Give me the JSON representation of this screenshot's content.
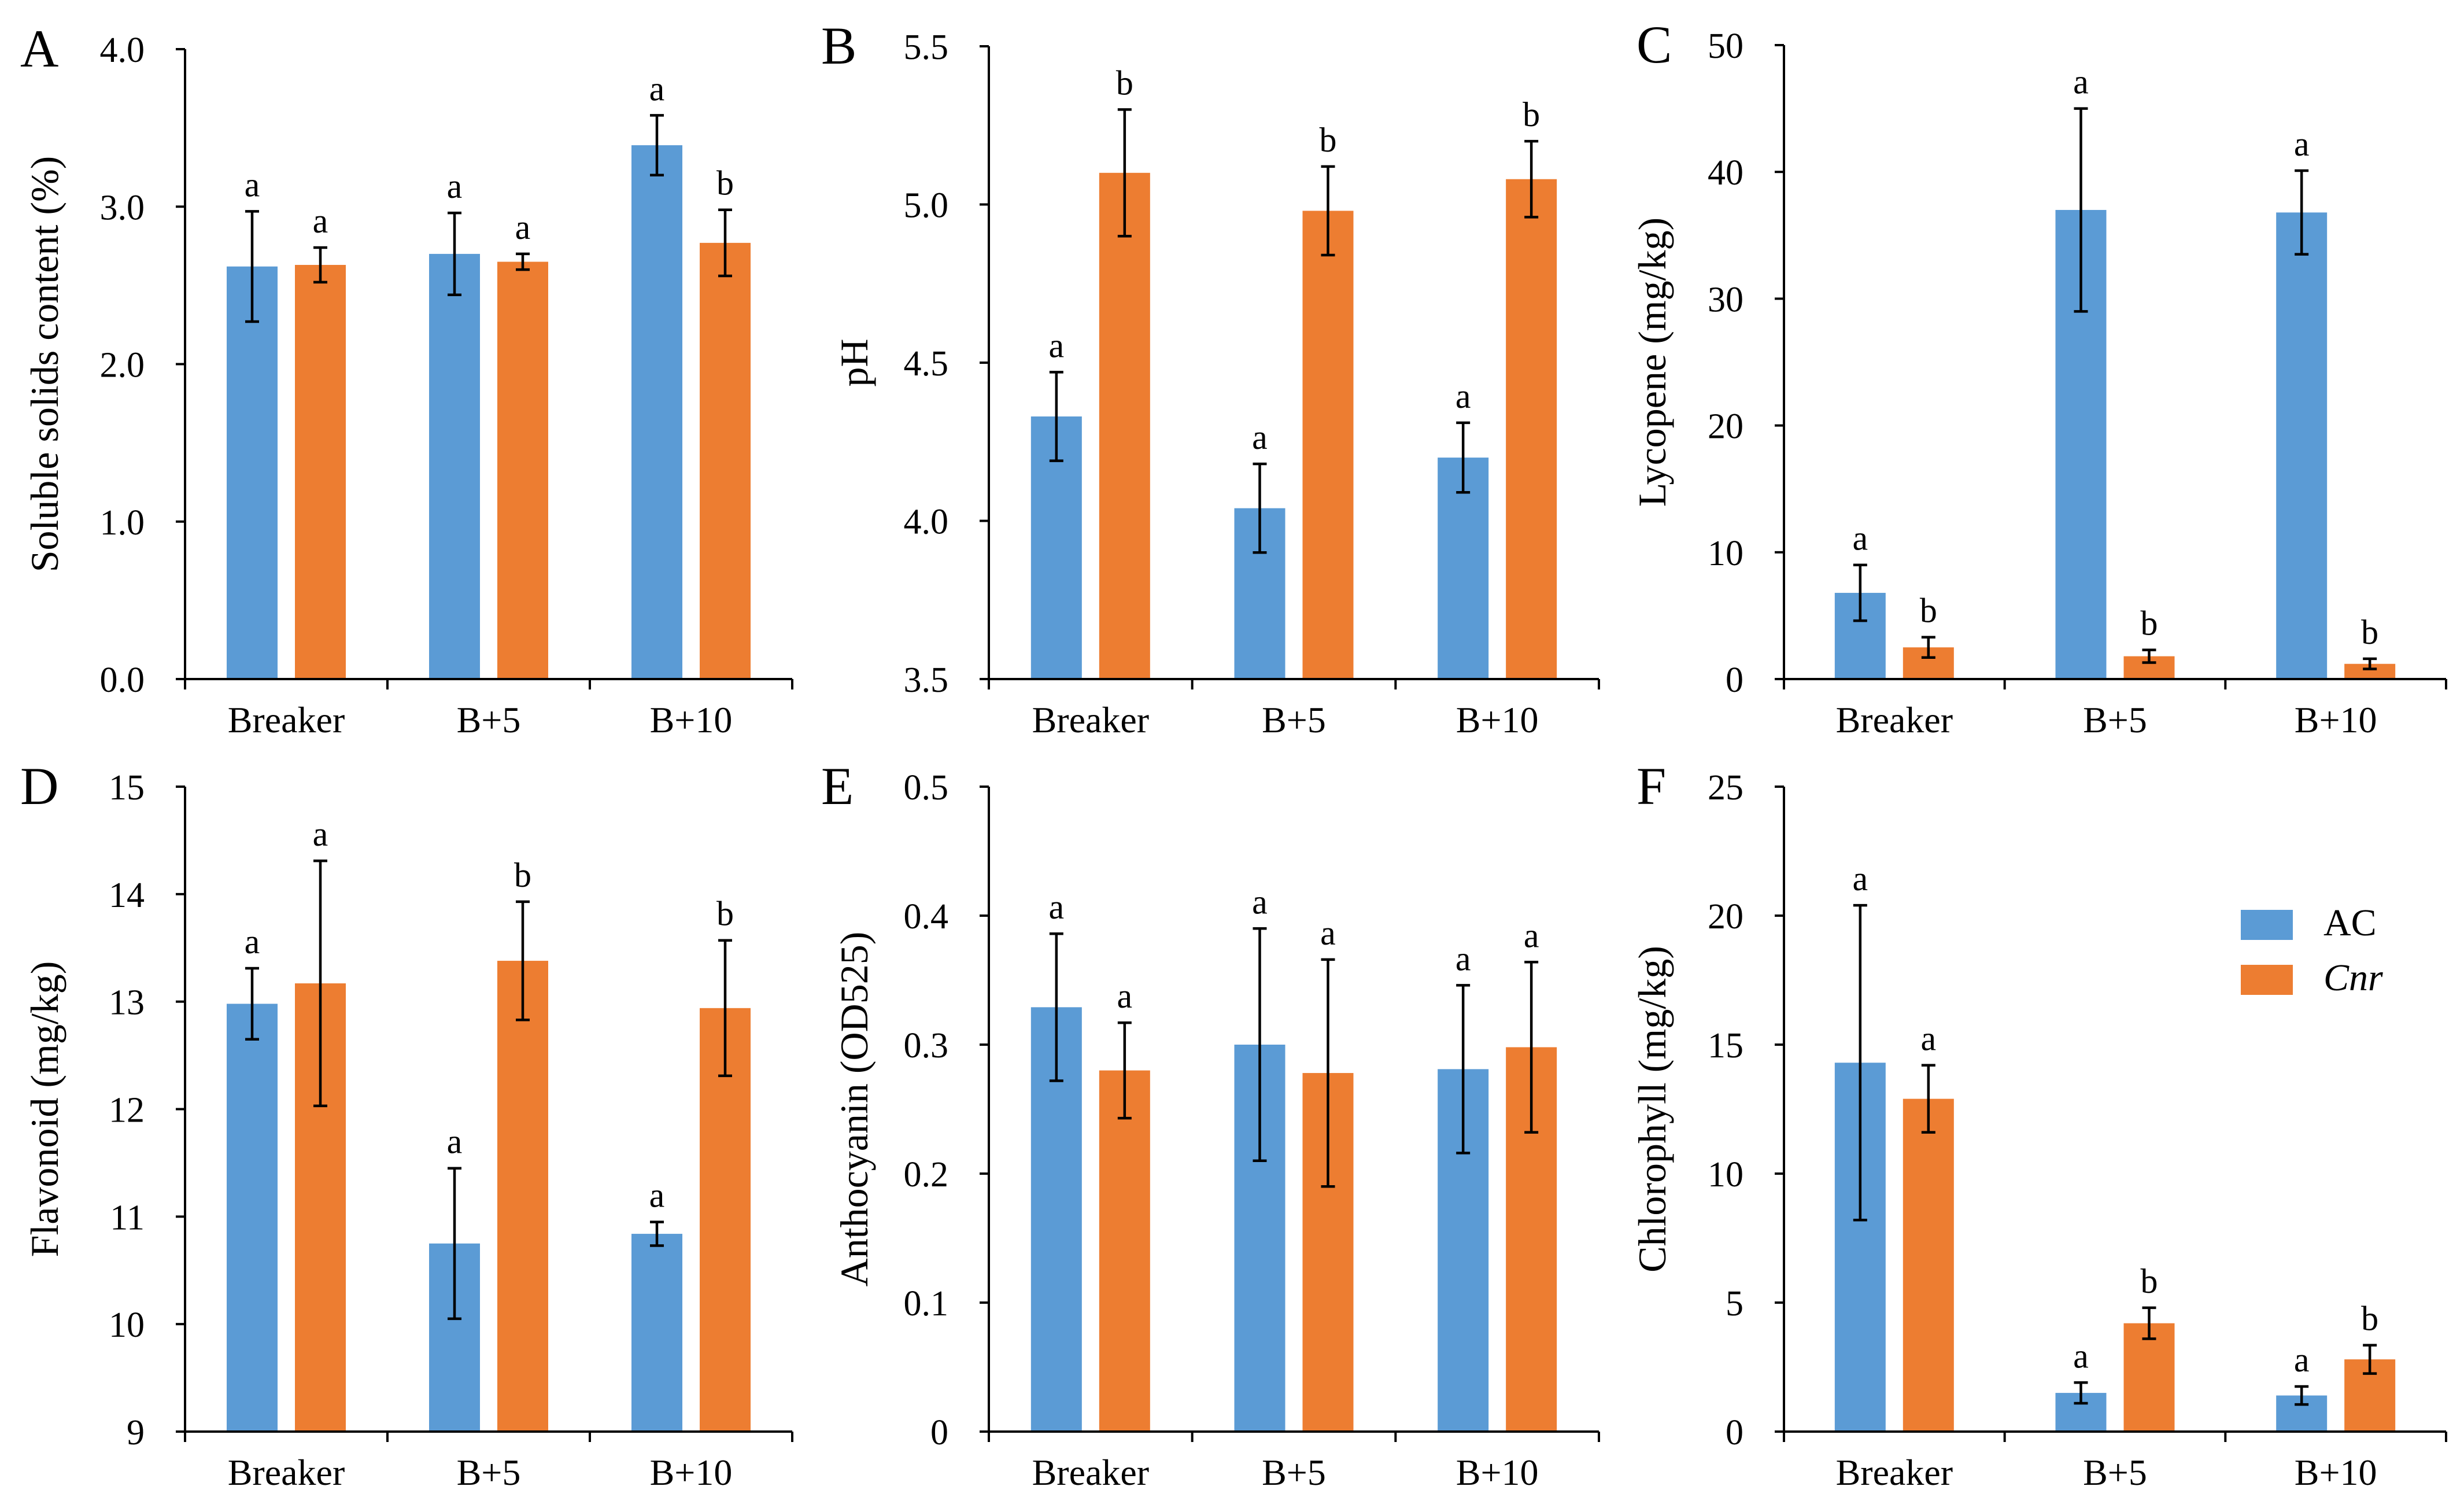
{
  "figure": {
    "legend": {
      "items": [
        {
          "label": "AC",
          "color": "#5b9bd5",
          "italic": false
        },
        {
          "label": "Cnr",
          "color": "#ed7d31",
          "italic": true
        }
      ]
    }
  },
  "chart_data": [
    {
      "panel": "A",
      "type": "bar",
      "title": "",
      "xlabel": "",
      "ylabel": "Soluble solids content (%)",
      "categories": [
        "Breaker",
        "B+5",
        "B+10"
      ],
      "ylim": [
        0.0,
        4.0
      ],
      "yticks": [
        0.0,
        1.0,
        2.0,
        3.0,
        4.0
      ],
      "ytick_labels": [
        "0.0",
        "1.0",
        "2.0",
        "3.0",
        "4.0"
      ],
      "series": [
        {
          "name": "AC",
          "color": "#5b9bd5",
          "values": [
            2.62,
            2.7,
            3.39
          ],
          "errors": [
            0.35,
            0.26,
            0.19
          ],
          "letters": [
            "a",
            "a",
            "a"
          ]
        },
        {
          "name": "Cnr",
          "color": "#ed7d31",
          "values": [
            2.63,
            2.65,
            2.77
          ],
          "errors": [
            0.11,
            0.05,
            0.21
          ],
          "letters": [
            "a",
            "a",
            "b"
          ]
        }
      ]
    },
    {
      "panel": "B",
      "type": "bar",
      "title": "",
      "xlabel": "",
      "ylabel": "pH",
      "categories": [
        "Breaker",
        "B+5",
        "B+10"
      ],
      "ylim": [
        3.5,
        5.5
      ],
      "yticks": [
        3.5,
        4.0,
        4.5,
        5.0,
        5.5
      ],
      "ytick_labels": [
        "3.5",
        "4.0",
        "4.5",
        "5.0",
        "5.5"
      ],
      "series": [
        {
          "name": "AC",
          "color": "#5b9bd5",
          "values": [
            4.33,
            4.04,
            4.2
          ],
          "errors": [
            0.14,
            0.14,
            0.11
          ],
          "letters": [
            "a",
            "a",
            "a"
          ]
        },
        {
          "name": "Cnr",
          "color": "#ed7d31",
          "values": [
            5.1,
            4.98,
            5.08
          ],
          "errors": [
            0.2,
            0.14,
            0.12
          ],
          "letters": [
            "b",
            "b",
            "b"
          ]
        }
      ]
    },
    {
      "panel": "C",
      "type": "bar",
      "title": "",
      "xlabel": "",
      "ylabel": "Lycopene (mg/kg)",
      "categories": [
        "Breaker",
        "B+5",
        "B+10"
      ],
      "ylim": [
        0,
        50
      ],
      "yticks": [
        0,
        10,
        20,
        30,
        40,
        50
      ],
      "ytick_labels": [
        "0",
        "10",
        "20",
        "30",
        "40",
        "50"
      ],
      "series": [
        {
          "name": "AC",
          "color": "#5b9bd5",
          "values": [
            6.8,
            37.0,
            36.8
          ],
          "errors": [
            2.2,
            8.0,
            3.3
          ],
          "letters": [
            "a",
            "a",
            "a"
          ]
        },
        {
          "name": "Cnr",
          "color": "#ed7d31",
          "values": [
            2.5,
            1.8,
            1.2
          ],
          "errors": [
            0.8,
            0.5,
            0.4
          ],
          "letters": [
            "b",
            "b",
            "b"
          ]
        }
      ]
    },
    {
      "panel": "D",
      "type": "bar",
      "title": "",
      "xlabel": "",
      "ylabel": "Flavonoid (mg/kg)",
      "categories": [
        "Breaker",
        "B+5",
        "B+10"
      ],
      "ylim": [
        9,
        15
      ],
      "yticks": [
        9,
        10,
        11,
        12,
        13,
        14,
        15
      ],
      "ytick_labels": [
        "9",
        "10",
        "11",
        "12",
        "13",
        "14",
        "15"
      ],
      "series": [
        {
          "name": "AC",
          "color": "#5b9bd5",
          "values": [
            12.98,
            10.75,
            10.84
          ],
          "errors": [
            0.33,
            0.7,
            0.11
          ],
          "letters": [
            "a",
            "a",
            "a"
          ]
        },
        {
          "name": "Cnr",
          "color": "#ed7d31",
          "values": [
            13.17,
            13.38,
            12.94
          ],
          "errors": [
            1.14,
            0.55,
            0.63
          ],
          "letters": [
            "a",
            "b",
            "b"
          ]
        }
      ]
    },
    {
      "panel": "E",
      "type": "bar",
      "title": "",
      "xlabel": "",
      "ylabel": "Anthocyanin (OD525)",
      "categories": [
        "Breaker",
        "B+5",
        "B+10"
      ],
      "ylim": [
        0,
        0.5
      ],
      "yticks": [
        0,
        0.1,
        0.2,
        0.3,
        0.4,
        0.5
      ],
      "ytick_labels": [
        "0",
        "0.1",
        "0.2",
        "0.3",
        "0.4",
        "0.5"
      ],
      "series": [
        {
          "name": "AC",
          "color": "#5b9bd5",
          "values": [
            0.329,
            0.3,
            0.281
          ],
          "errors": [
            0.057,
            0.09,
            0.065
          ],
          "letters": [
            "a",
            "a",
            "a"
          ]
        },
        {
          "name": "Cnr",
          "color": "#ed7d31",
          "values": [
            0.28,
            0.278,
            0.298
          ],
          "errors": [
            0.037,
            0.088,
            0.066
          ],
          "letters": [
            "a",
            "a",
            "a"
          ]
        }
      ]
    },
    {
      "panel": "F",
      "type": "bar",
      "title": "",
      "xlabel": "",
      "ylabel": "Chlorophyll (mg/kg)",
      "categories": [
        "Breaker",
        "B+5",
        "B+10"
      ],
      "ylim": [
        0,
        25
      ],
      "yticks": [
        0,
        5,
        10,
        15,
        20,
        25
      ],
      "ytick_labels": [
        "0",
        "5",
        "10",
        "15",
        "20",
        "25"
      ],
      "series": [
        {
          "name": "AC",
          "color": "#5b9bd5",
          "values": [
            14.3,
            1.5,
            1.4
          ],
          "errors": [
            6.1,
            0.4,
            0.35
          ],
          "letters": [
            "a",
            "a",
            "a"
          ]
        },
        {
          "name": "Cnr",
          "color": "#ed7d31",
          "values": [
            12.9,
            4.2,
            2.8
          ],
          "errors": [
            1.3,
            0.6,
            0.55
          ],
          "letters": [
            "a",
            "b",
            "b"
          ]
        }
      ],
      "legend": "right"
    }
  ]
}
